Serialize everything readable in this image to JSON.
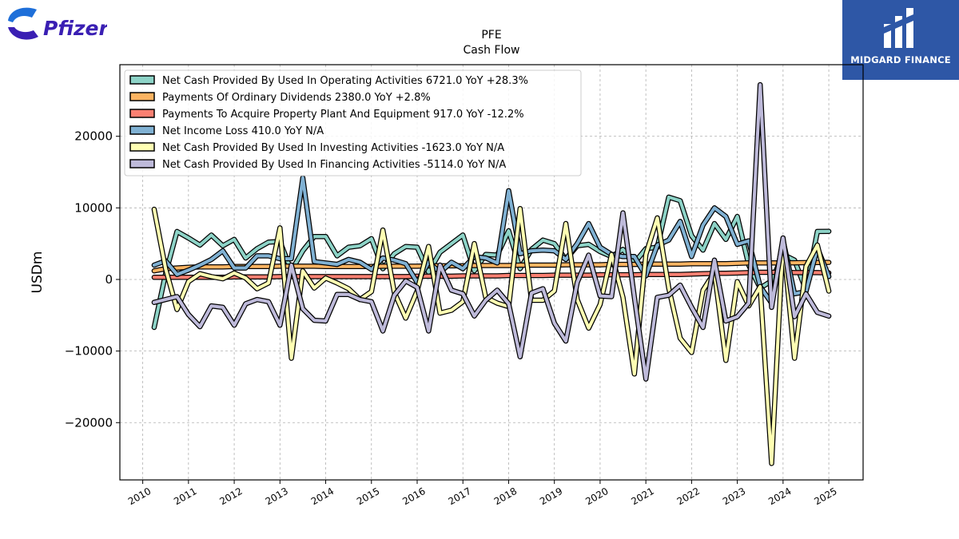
{
  "logos": {
    "left_text": "Pfizer",
    "right_text": "MIDGARD FINANCE"
  },
  "chart_data": {
    "type": "line",
    "title": "PFE",
    "subtitle": "Cash Flow",
    "xlabel": "",
    "ylabel": "USDm",
    "ylim": [
      -28000,
      30000
    ],
    "xlim": [
      2009.5,
      2025.75
    ],
    "grid": true,
    "legend_position": "top-left",
    "x_ticks": [
      2010,
      2011,
      2012,
      2013,
      2014,
      2015,
      2016,
      2017,
      2018,
      2019,
      2020,
      2021,
      2022,
      2023,
      2024,
      2025
    ],
    "y_ticks": [
      -20000,
      -10000,
      0,
      10000,
      20000
    ],
    "y_tick_labels": [
      "−20000",
      "−10000",
      "0",
      "10000",
      "20000"
    ],
    "x": [
      2010.25,
      2010.5,
      2010.75,
      2011.0,
      2011.25,
      2011.5,
      2011.75,
      2012.0,
      2012.25,
      2012.5,
      2012.75,
      2013.0,
      2013.25,
      2013.5,
      2013.75,
      2014.0,
      2014.25,
      2014.5,
      2014.75,
      2015.0,
      2015.25,
      2015.5,
      2015.75,
      2016.0,
      2016.25,
      2016.5,
      2016.75,
      2017.0,
      2017.25,
      2017.5,
      2017.75,
      2018.0,
      2018.25,
      2018.5,
      2018.75,
      2019.0,
      2019.25,
      2019.5,
      2019.75,
      2020.0,
      2020.25,
      2020.5,
      2020.75,
      2021.0,
      2021.25,
      2021.5,
      2021.75,
      2022.0,
      2022.25,
      2022.5,
      2022.75,
      2023.0,
      2023.25,
      2023.5,
      2023.75,
      2024.0,
      2024.25,
      2024.5,
      2024.75,
      2025.0
    ],
    "series": [
      {
        "name": "Net Cash Provided By Used In Operating Activities",
        "legend_label": "Net Cash Provided By Used In Operating Activities  6721.0 YoY +28.3%",
        "color": "#8dd3c7",
        "values": [
          -6700,
          800,
          6700,
          5800,
          4800,
          6200,
          4700,
          5600,
          3000,
          4300,
          5200,
          5300,
          1200,
          4000,
          6000,
          6000,
          3300,
          4500,
          4700,
          5700,
          1500,
          3600,
          4600,
          4500,
          1000,
          3800,
          5000,
          6200,
          1200,
          3500,
          3400,
          6800,
          1500,
          4200,
          5500,
          5000,
          2800,
          4700,
          4900,
          3900,
          3200,
          4200,
          2300,
          4300,
          4500,
          11500,
          11000,
          6100,
          4100,
          7800,
          5600,
          8800,
          2000,
          -1200,
          -200,
          3500,
          2700,
          -1500,
          6700,
          6721
        ]
      },
      {
        "name": "Payments Of Ordinary Dividends",
        "legend_label": "Payments Of Ordinary Dividends  2380.0 YoY +2.8%",
        "color": "#fdb462",
        "values": [
          1200,
          1500,
          1600,
          1700,
          1750,
          1750,
          1750,
          1800,
          1800,
          1800,
          1800,
          1850,
          1850,
          1850,
          1850,
          1800,
          1800,
          1800,
          1800,
          1800,
          1850,
          1850,
          1850,
          1850,
          1900,
          1900,
          1900,
          1900,
          1950,
          1950,
          1950,
          1950,
          2000,
          2000,
          2000,
          2000,
          2050,
          2050,
          2050,
          2050,
          2100,
          2100,
          2100,
          2150,
          2150,
          2150,
          2150,
          2200,
          2200,
          2200,
          2200,
          2250,
          2300,
          2300,
          2300,
          2300,
          2330,
          2350,
          2360,
          2380
        ]
      },
      {
        "name": "Payments To Acquire Property Plant And Equipment",
        "legend_label": "Payments To Acquire Property Plant And Equipment  917.0 YoY -12.2%",
        "color": "#fb8072",
        "values": [
          300,
          300,
          300,
          300,
          300,
          300,
          300,
          350,
          350,
          350,
          350,
          400,
          400,
          400,
          400,
          400,
          400,
          400,
          400,
          400,
          400,
          400,
          400,
          450,
          450,
          450,
          450,
          500,
          500,
          500,
          500,
          550,
          550,
          550,
          550,
          600,
          600,
          600,
          600,
          650,
          650,
          650,
          650,
          700,
          700,
          700,
          700,
          750,
          800,
          850,
          850,
          900,
          950,
          1000,
          1000,
          1000,
          950,
          950,
          950,
          917
        ]
      },
      {
        "name": "Net Income Loss",
        "legend_label": "Net Income Loss  410.0 YoY N/A",
        "color": "#80b1d3",
        "values": [
          2000,
          2600,
          700,
          1300,
          2000,
          2800,
          4000,
          1600,
          1600,
          3300,
          3300,
          2900,
          2900,
          14200,
          2500,
          2300,
          2100,
          2800,
          2400,
          1400,
          3000,
          2700,
          2200,
          -400,
          2400,
          1000,
          2400,
          1500,
          3200,
          3000,
          2300,
          12400,
          3600,
          4000,
          4100,
          4000,
          2800,
          5000,
          7800,
          4500,
          3500,
          3200,
          3200,
          500,
          4800,
          5500,
          8100,
          3200,
          7600,
          10000,
          8800,
          4900,
          5400,
          -1000,
          -3300,
          5500,
          -2000,
          -1700,
          4400,
          410
        ]
      },
      {
        "name": "Net Cash Provided By Used In Investing Activities",
        "legend_label": "Net Cash Provided By Used In Investing Activities  -1623.0 YoY N/A",
        "color": "#ffffb3",
        "values": [
          9800,
          1500,
          -4200,
          -300,
          800,
          400,
          100,
          900,
          200,
          -1300,
          -500,
          7200,
          -11000,
          1200,
          -1200,
          200,
          -500,
          -1300,
          -2800,
          -1700,
          6900,
          -1800,
          -5400,
          -1600,
          4600,
          -4700,
          -4300,
          -3100,
          5000,
          -2500,
          -3300,
          -3800,
          9900,
          -2900,
          -2900,
          -1600,
          7800,
          -2800,
          -6800,
          -3500,
          3500,
          -2500,
          -13200,
          3500,
          8600,
          -1200,
          -8200,
          -10200,
          -1500,
          1000,
          -11300,
          -300,
          -3700,
          -1000,
          -25700,
          5500,
          -11000,
          1800,
          4800,
          -1623
        ]
      },
      {
        "name": "Net Cash Provided By Used In Financing Activities",
        "legend_label": "Net Cash Provided By Used In Financing Activities  -5114.0 YoY N/A",
        "color": "#bebada",
        "values": [
          -3200,
          -2800,
          -2400,
          -4900,
          -6600,
          -3700,
          -3900,
          -6400,
          -3400,
          -2800,
          -3100,
          -6400,
          2000,
          -4100,
          -5700,
          -5800,
          -2100,
          -2100,
          -2800,
          -3100,
          -7200,
          -2200,
          -200,
          -1100,
          -7200,
          2000,
          -1500,
          -2000,
          -5100,
          -2900,
          -1500,
          -3400,
          -10800,
          -1900,
          -1300,
          -6100,
          -8600,
          -400,
          3400,
          -2300,
          -2400,
          9300,
          -2500,
          -13900,
          -2500,
          -2200,
          -800,
          -3900,
          -6700,
          2700,
          -5800,
          -5200,
          -3300,
          27200,
          -3900,
          5800,
          -5200,
          -2000,
          -4600,
          -5114
        ]
      }
    ]
  }
}
